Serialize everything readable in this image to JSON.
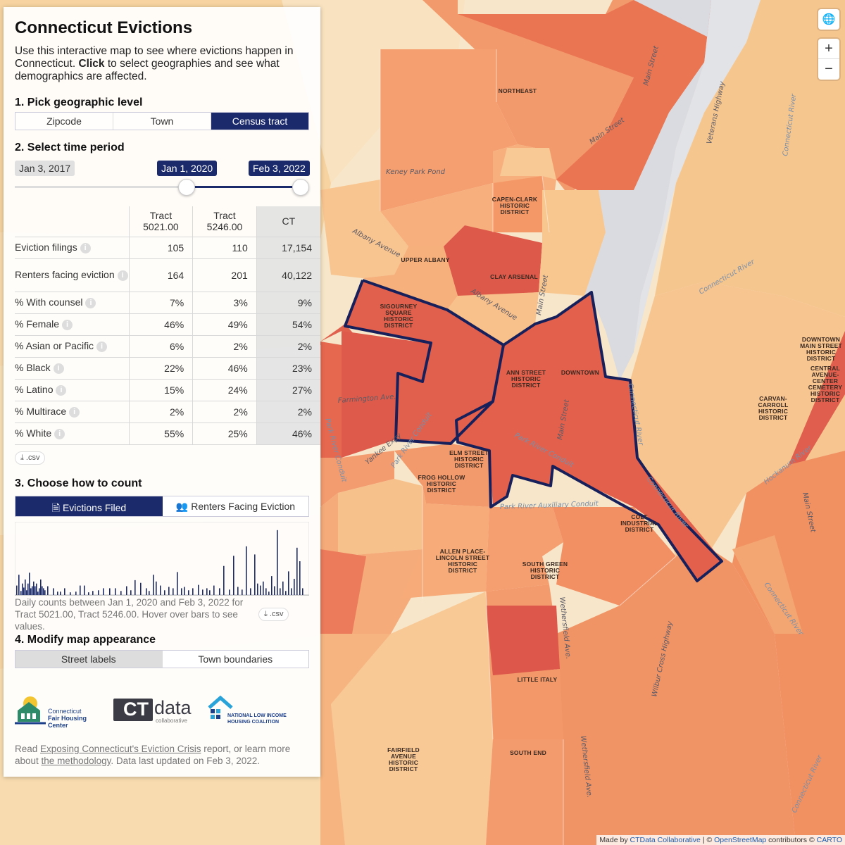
{
  "panel": {
    "title": "Connecticut Evictions",
    "intro_a": "Use this interactive map to see where evictions happen in Connecticut. ",
    "intro_bold": "Click",
    "intro_b": " to select geographies and see what demographics are affected.",
    "step1": "1. Pick geographic level",
    "geo_levels": [
      "Zipcode",
      "Town",
      "Census tract"
    ],
    "geo_selected": "Census tract",
    "step2": "2. Select time period",
    "date_start": "Jan 3, 2017",
    "date_from": "Jan 1, 2020",
    "date_to": "Feb 3, 2022",
    "table": {
      "headers": [
        "Tract\n5021.00",
        "Tract\n5246.00",
        "CT"
      ],
      "rows": [
        {
          "label": "Eviction filings",
          "a": "105",
          "b": "110",
          "ct": "17,154"
        },
        {
          "label": "Renters facing eviction",
          "a": "164",
          "b": "201",
          "ct": "40,122"
        },
        {
          "label": "% With counsel",
          "a": "7%",
          "b": "3%",
          "ct": "9%"
        },
        {
          "label": "% Female",
          "a": "46%",
          "b": "49%",
          "ct": "54%"
        },
        {
          "label": "% Asian or Pacific",
          "a": "6%",
          "b": "2%",
          "ct": "2%"
        },
        {
          "label": "% Black",
          "a": "22%",
          "b": "46%",
          "ct": "23%"
        },
        {
          "label": "% Latino",
          "a": "15%",
          "b": "24%",
          "ct": "27%"
        },
        {
          "label": "% Multirace",
          "a": "2%",
          "b": "2%",
          "ct": "2%"
        },
        {
          "label": "% White",
          "a": "55%",
          "b": "25%",
          "ct": "46%"
        }
      ]
    },
    "csv_label": ".csv",
    "step3": "3. Choose how to count",
    "count_options": [
      "Evictions Filed",
      "Renters Facing Eviction"
    ],
    "count_selected": "Evictions Filed",
    "daily_caption": "Daily counts between Jan 1, 2020 and Feb 3, 2022 for Tract 5021.00, Tract 5246.00. Hover over bars to see values.",
    "step4": "4. Modify map appearance",
    "appearance_options": [
      "Street labels",
      "Town boundaries"
    ],
    "appearance_selected": "Street labels",
    "logos": {
      "cfhc": [
        "Connecticut",
        "Fair Housing Center"
      ],
      "ctdata": [
        "CT",
        "data",
        "collaborative"
      ],
      "nlihc": [
        "NATIONAL LOW INCOME",
        "HOUSING COALITION"
      ]
    },
    "footer": {
      "a": "Read ",
      "link1": "Exposing Connecticut's Eviction Crisis",
      "b": " report, or learn more about ",
      "link2": "the methodology",
      "c": ". Data last updated on Feb 3, 2022."
    }
  },
  "chart_data": {
    "type": "bar",
    "title": "",
    "xlabel": "",
    "ylabel": "",
    "x_range": [
      "Jan 1, 2020",
      "Feb 3, 2022"
    ],
    "note": "Daily eviction filing counts (relative heights, 0-1 scale)",
    "values": [
      0.14,
      0.3,
      0.06,
      0.17,
      0.11,
      0.23,
      0.07,
      0.17,
      0.33,
      0.1,
      0.13,
      0.2,
      0.13,
      0.17,
      0.05,
      0.1,
      0.23,
      0.13,
      0.1,
      0.07,
      0.13,
      0.1,
      0.05,
      0.05,
      0.1,
      0.04,
      0.05,
      0.14,
      0.14,
      0.04,
      0.06,
      0.07,
      0.1,
      0.1,
      0.1,
      0.06,
      0.13,
      0.07,
      0.22,
      0.18,
      0.1,
      0.06,
      0.3,
      0.2,
      0.14,
      0.07,
      0.12,
      0.1,
      0.34,
      0.1,
      0.12,
      0.07,
      0.1,
      0.15,
      0.08,
      0.1,
      0.07,
      0.14,
      0.1,
      0.43,
      0.08,
      0.58,
      0.12,
      0.08,
      0.72,
      0.1,
      0.6,
      0.17,
      0.14,
      0.2,
      0.1,
      0.05,
      0.28,
      0.13,
      0.96,
      0.1,
      0.2,
      0.06,
      0.35,
      0.1,
      0.24,
      0.7,
      0.5,
      0.1
    ]
  },
  "map": {
    "labels": [
      "NORTHEAST",
      "CAPEN-CLARK\nHISTORIC\nDISTRICT",
      "UPPER ALBANY",
      "CLAY ARSENAL",
      "SIGOURNEY\nSQUARE\nHISTORIC\nDISTRICT",
      "ANN STREET\nHISTORIC\nDISTRICT",
      "DOWNTOWN",
      "ELM STREET\nHISTORIC\nDISTRICT",
      "FROG HOLLOW\nHISTORIC\nDISTRICT",
      "COLT\nINDUSTRIAL\nDISTRICT",
      "ALLEN PLACE-\nLINCOLN STREET\nHISTORIC\nDISTRICT",
      "SOUTH GREEN\nHISTORIC\nDISTRICT",
      "LITTLE ITALY",
      "SOUTH END",
      "FAIRFIELD\nAVENUE\nHISTORIC\nDISTRICT",
      "DOWNTOWN\nMAIN STREET\nHISTORIC\nDISTRICT",
      "CENTRAL\nAVENUE-\nCENTER\nCEMETERY\nHISTORIC\nDISTRICT",
      "CARVAN-\nCARROLL\nHISTORIC\nDISTRICT"
    ],
    "streets": [
      "Main Street",
      "Veterans Highway",
      "Connecticut River",
      "Keney Park Pond",
      "Albany Avenue",
      "Farmington Ave.",
      "Yankee Expy",
      "Park River Conduit",
      "Park River Auxiliary Conduit",
      "Wethersfield Ave.",
      "Wilbur Cross Highway",
      "Hockanum River"
    ],
    "colors": {
      "low": "#f6d9a8",
      "mid": "#f8b878",
      "high": "#f2956b",
      "higher": "#ec7c5c",
      "highest": "#de5a4c",
      "selected_outline": "#17205a",
      "river": "#d8d9de"
    }
  },
  "controls": {
    "zoom_in": "+",
    "zoom_out": "−"
  },
  "attribution": {
    "a": "Made by ",
    "l1": "CTData Collaborative",
    "b": " | © ",
    "l2": "OpenStreetMap",
    "c": " contributors © ",
    "l3": "CARTO"
  }
}
